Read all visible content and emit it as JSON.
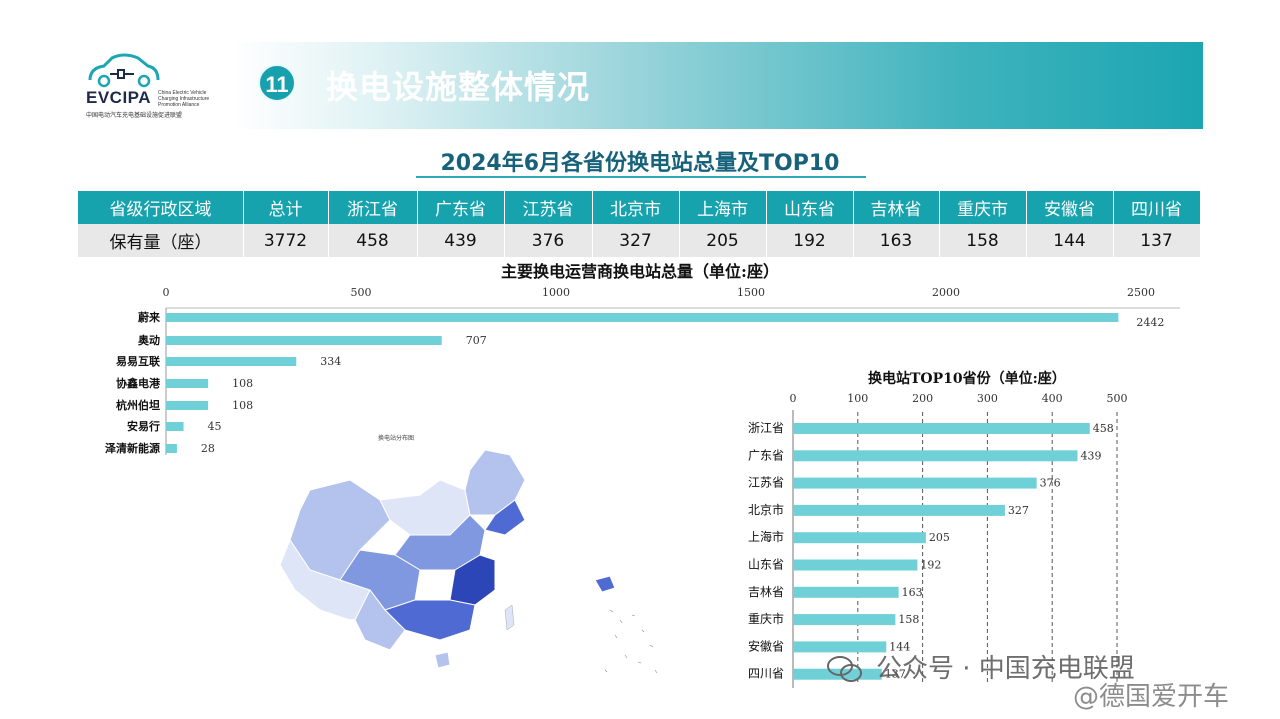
{
  "logo": {
    "name": "EVCIPA",
    "en_text": "China Electric Vehicle Charging Infrastructure Promotion Alliance",
    "cn_text": "中国电动汽车充电基础设施促进联盟"
  },
  "header": {
    "number": "11",
    "title": "换电设施整体情况"
  },
  "table_title": "2024年6月各省份换电站总量及TOP10",
  "table": {
    "headers": [
      "省级行政区域",
      "总计",
      "浙江省",
      "广东省",
      "江苏省",
      "北京市",
      "上海市",
      "山东省",
      "吉林省",
      "重庆市",
      "安徽省",
      "四川省"
    ],
    "row": [
      "保有量（座）",
      "3772",
      "458",
      "439",
      "376",
      "327",
      "205",
      "192",
      "163",
      "158",
      "144",
      "137"
    ]
  },
  "chart_data": [
    {
      "type": "bar",
      "orientation": "horizontal",
      "title": "主要换电运营商换电站总量（单位:座）",
      "categories": [
        "蔚来",
        "奥动",
        "易易互联",
        "协鑫电港",
        "杭州伯坦",
        "安易行",
        "泽清新能源"
      ],
      "values": [
        2442,
        707,
        334,
        108,
        108,
        45,
        28
      ],
      "xlim": [
        0,
        2500
      ],
      "ticks": [
        0,
        500,
        1000,
        1500,
        2000,
        2500
      ],
      "grid": false,
      "color": "#6fd0d8"
    },
    {
      "type": "bar",
      "orientation": "horizontal",
      "title": "换电站TOP10省份（单位:座）",
      "categories": [
        "浙江省",
        "广东省",
        "江苏省",
        "北京市",
        "上海市",
        "山东省",
        "吉林省",
        "重庆市",
        "安徽省",
        "四川省"
      ],
      "values": [
        458,
        439,
        376,
        327,
        205,
        192,
        163,
        158,
        144,
        137
      ],
      "xlim": [
        0,
        500
      ],
      "ticks": [
        0,
        100,
        200,
        300,
        400,
        500
      ],
      "grid": true,
      "color": "#6fd0d8"
    }
  ],
  "map": {
    "caption": "换电站分布图",
    "fill_colors": [
      "#dde5f7",
      "#b4c3ee",
      "#8098e0",
      "#4f6ad2",
      "#2c46b8"
    ]
  },
  "watermark": {
    "text": "公众号 · 中国充电联盟",
    "text2": "@德国爱开车",
    "icon": "wechat-icon"
  }
}
